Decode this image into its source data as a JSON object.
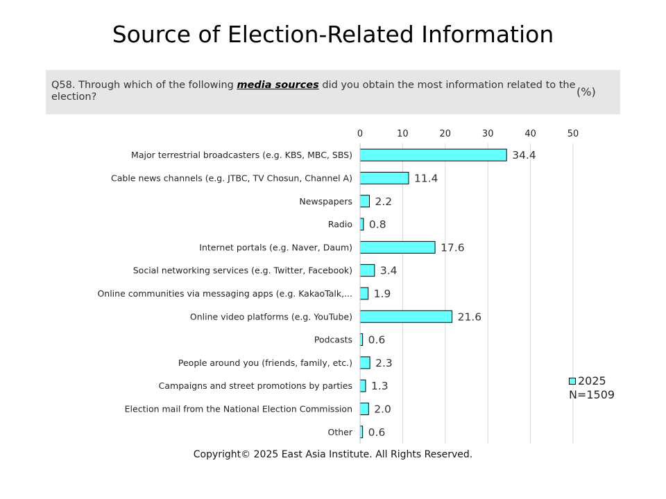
{
  "title": "Source of Election-Related Information",
  "question": {
    "prefix": "Q58. Through which of the following ",
    "emphasis": "media sources",
    "suffix": " did you obtain the most information related to the election?",
    "unit": "(%)"
  },
  "legend": {
    "series": "2025",
    "sample": "N=1509"
  },
  "copyright": "Copyright© 2025 East Asia Institute. All Rights Reserved.",
  "colors": {
    "bar": "#66ffff",
    "bar_outline": "#000000",
    "grid": "#d9d9d9"
  },
  "chart_data": {
    "type": "bar",
    "orientation": "horizontal",
    "title": "Source of Election-Related Information",
    "categories": [
      "Major terrestrial broadcasters (e.g. KBS, MBC, SBS)",
      "Cable news channels (e.g. JTBC, TV Chosun, Channel A)",
      "Newspapers",
      "Radio",
      "Internet portals (e.g. Naver, Daum)",
      "Social networking services (e.g. Twitter, Facebook)",
      "Online communities via messaging apps (e.g. KakaoTalk,...",
      "Online video platforms (e.g. YouTube)",
      "Podcasts",
      "People around you (friends, family, etc.)",
      "Campaigns and street promotions by parties",
      "Election mail from the National Election Commission",
      "Other"
    ],
    "series": [
      {
        "name": "2025",
        "values": [
          34.4,
          11.4,
          2.2,
          0.8,
          17.6,
          3.4,
          1.9,
          21.6,
          0.6,
          2.3,
          1.3,
          2.0,
          0.6
        ]
      }
    ],
    "value_labels": [
      "34.4",
      "11.4",
      "2.2",
      "0.8",
      "17.6",
      "3.4",
      "1.9",
      "21.6",
      "0.6",
      "2.3",
      "1.3",
      "2.0",
      "0.6"
    ],
    "xlim": [
      0,
      50
    ],
    "xticks": [
      "0",
      "10",
      "20",
      "30",
      "40",
      "50"
    ],
    "axis_position": "top",
    "grid": true,
    "legend_position": "right"
  }
}
